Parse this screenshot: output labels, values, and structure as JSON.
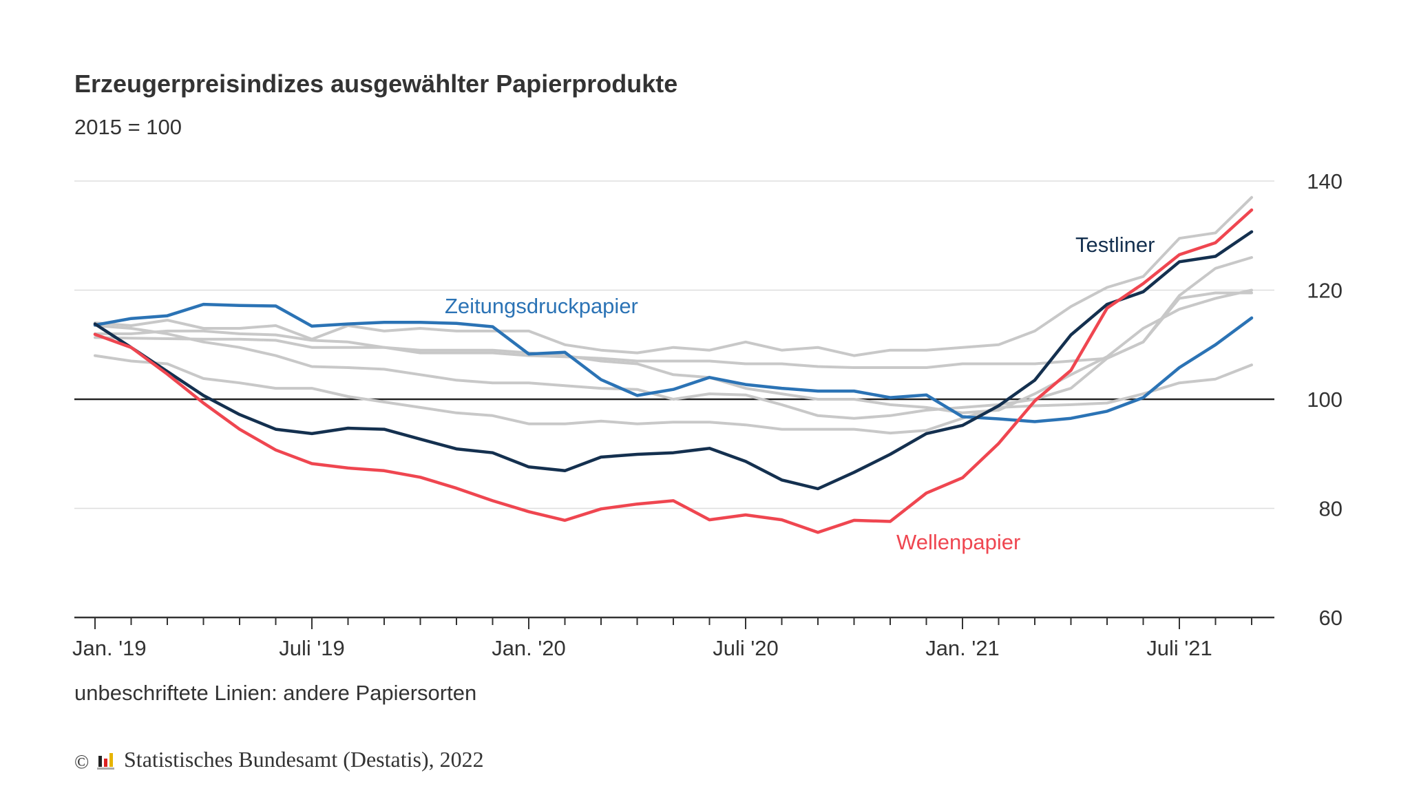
{
  "chart_data": {
    "type": "line",
    "title": "Erzeugerpreisindizes ausgewählter Papierprodukte",
    "subtitle": "2015 = 100",
    "note": "unbeschriftete Linien: andere Papiersorten",
    "source": "Statistisches Bundesamt (Destatis), 2022",
    "copyright_symbol": "©",
    "ylim": [
      60,
      140
    ],
    "yticks": [
      60,
      80,
      100,
      120,
      140
    ],
    "ytick_labels": [
      "60",
      "80",
      "100",
      "120",
      "140"
    ],
    "y_axis_side": "right",
    "grid": true,
    "reference_line": 100,
    "x_start": "2019-01",
    "x_end": "2021-09",
    "x_tick_labels": [
      "Jan. '19",
      "Juli '19",
      "Jan. '20",
      "Juli '20",
      "Jan. '21",
      "Juli '21"
    ],
    "x": [
      "2019-01",
      "2019-02",
      "2019-03",
      "2019-04",
      "2019-05",
      "2019-06",
      "2019-07",
      "2019-08",
      "2019-09",
      "2019-10",
      "2019-11",
      "2019-12",
      "2020-01",
      "2020-02",
      "2020-03",
      "2020-04",
      "2020-05",
      "2020-06",
      "2020-07",
      "2020-08",
      "2020-09",
      "2020-10",
      "2020-11",
      "2020-12",
      "2021-01",
      "2021-02",
      "2021-03",
      "2021-04",
      "2021-05",
      "2021-06",
      "2021-07",
      "2021-08",
      "2021-09"
    ],
    "series": [
      {
        "name": "",
        "color": "#c8c8c8",
        "values": [
          114,
          113.5,
          114.5,
          113,
          113,
          113.5,
          111,
          113.5,
          112.5,
          113,
          112.5,
          112.5,
          112.5,
          110,
          109,
          108.5,
          109.5,
          109,
          110.5,
          109,
          109.5,
          108,
          109,
          109,
          109.5,
          110,
          112.5,
          117,
          120.5,
          122.5,
          129.5,
          130.5,
          137
        ]
      },
      {
        "name": "",
        "color": "#c8c8c8",
        "values": [
          112,
          112,
          112.5,
          112.5,
          112,
          111.8,
          110.8,
          110.5,
          109.5,
          108.5,
          108.5,
          108.5,
          108,
          107.8,
          107.5,
          107,
          107,
          107,
          106.5,
          106.5,
          106,
          105.8,
          105.8,
          105.8,
          106.5,
          106.5,
          106.5,
          107,
          107.5,
          110.5,
          118.5,
          119.5,
          119.5
        ]
      },
      {
        "name": "",
        "color": "#c8c8c8",
        "values": [
          113.5,
          113,
          112,
          110.5,
          109.5,
          108,
          106,
          105.8,
          105.5,
          104.5,
          103.5,
          103,
          103,
          102.5,
          102,
          101.8,
          100,
          101,
          100.8,
          99,
          97,
          96.5,
          97,
          98,
          98.5,
          99,
          100,
          102,
          107.5,
          110.5,
          119,
          124,
          126
        ]
      },
      {
        "name": "",
        "color": "#c8c8c8",
        "values": [
          108,
          107,
          106.5,
          103.8,
          103,
          102,
          102,
          100.5,
          99.5,
          98.5,
          97.5,
          97,
          95.5,
          95.5,
          96,
          95.5,
          95.8,
          95.8,
          95.3,
          94.5,
          94.5,
          94.5,
          93.8,
          94.3,
          96.5,
          98.5,
          98.8,
          99,
          99.3,
          101,
          103,
          103.7,
          106.3
        ]
      },
      {
        "name": "",
        "color": "#c8c8c8",
        "values": [
          111.3,
          111.2,
          111.1,
          111,
          111,
          110.8,
          109.5,
          109.5,
          109.5,
          109,
          109,
          109,
          108.5,
          108,
          107,
          106.5,
          104.5,
          104,
          102,
          101,
          100,
          100,
          99,
          98.5,
          97.5,
          98,
          101,
          104.5,
          107.8,
          113,
          116.5,
          118.5,
          120
        ]
      },
      {
        "name": "Zeitungsdruckpapier",
        "color": "#2b73b5",
        "values": [
          113.6,
          114.8,
          115.3,
          117.4,
          117.2,
          117.1,
          113.4,
          113.8,
          114.1,
          114.1,
          113.9,
          113.3,
          108.3,
          108.6,
          103.6,
          100.7,
          101.8,
          104.0,
          102.7,
          102.0,
          101.5,
          101.5,
          100.3,
          100.8,
          96.8,
          96.4,
          95.9,
          96.5,
          97.8,
          100.3,
          105.8,
          110.0,
          114.9
        ]
      },
      {
        "name": "Testliner",
        "color": "#14304f",
        "values": [
          113.8,
          109.5,
          105.1,
          100.7,
          97.2,
          94.5,
          93.7,
          94.7,
          94.5,
          92.7,
          90.9,
          90.2,
          87.6,
          86.9,
          89.4,
          89.9,
          90.2,
          91.0,
          88.6,
          85.2,
          83.6,
          86.6,
          89.9,
          93.7,
          95.2,
          98.8,
          103.5,
          111.8,
          117.4,
          119.7,
          125.2,
          126.2,
          130.7
        ]
      },
      {
        "name": "Wellenpapier",
        "color": "#ef4650",
        "values": [
          111.9,
          109.5,
          104.6,
          99.3,
          94.5,
          90.7,
          88.2,
          87.4,
          86.9,
          85.7,
          83.7,
          81.4,
          79.4,
          77.8,
          79.9,
          80.8,
          81.4,
          77.9,
          78.8,
          77.9,
          75.6,
          77.8,
          77.6,
          82.8,
          85.6,
          91.9,
          99.7,
          105.3,
          116.7,
          121.2,
          126.5,
          128.7,
          134.7
        ]
      }
    ]
  }
}
